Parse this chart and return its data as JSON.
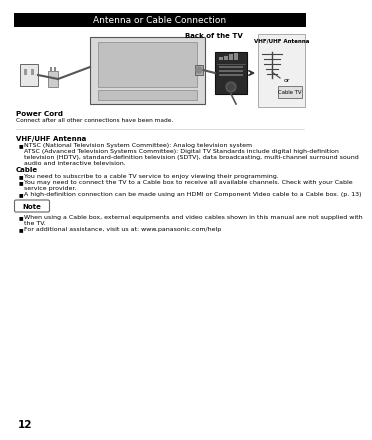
{
  "title": "Antenna or Cable Connection",
  "title_bg": "#000000",
  "title_color": "#ffffff",
  "title_fontsize": 6.5,
  "body_bg": "#ffffff",
  "section1_header": "VHF/UHF Antenna",
  "section1_bullet1": "NTSC (National Television System Committee): Analog television system",
  "section1_bullet2": "ATSC (Advanced Television Systems Committee): Digital TV Standards include digital high-definition\ntelevision (HDTV), standard-definition television (SDTV), data broadcasting, multi-channel surround sound\naudio and interactive television.",
  "section2_header": "Cable",
  "section2_bullet1": "You need to subscribe to a cable TV service to enjoy viewing their programming.",
  "section2_bullet2": "You may need to connect the TV to a Cable box to receive all available channels. Check with your Cable\nservice provider.",
  "section2_bullet3": "A high-definition connection can be made using an HDMI or Component Video cable to a Cable box. (p. 13)",
  "note_label": "Note",
  "note_bullet1": "When using a Cable box, external equipments and video cables shown in this manual are not supplied with\nthe TV.",
  "note_bullet2": "For additional assistance, visit us at: www.panasonic.com/help",
  "diagram_label_back": "Back of the TV",
  "diagram_label_power": "Power Cord",
  "diagram_label_power_sub": "Connect after all other connections have been made.",
  "diagram_label_antenna": "VHF/UHF Antenna",
  "diagram_label_or": "or",
  "diagram_label_cable": "Cable TV",
  "page_number": "12",
  "font_size_body": 4.5,
  "font_size_header": 5.0,
  "bullet_char": "■"
}
